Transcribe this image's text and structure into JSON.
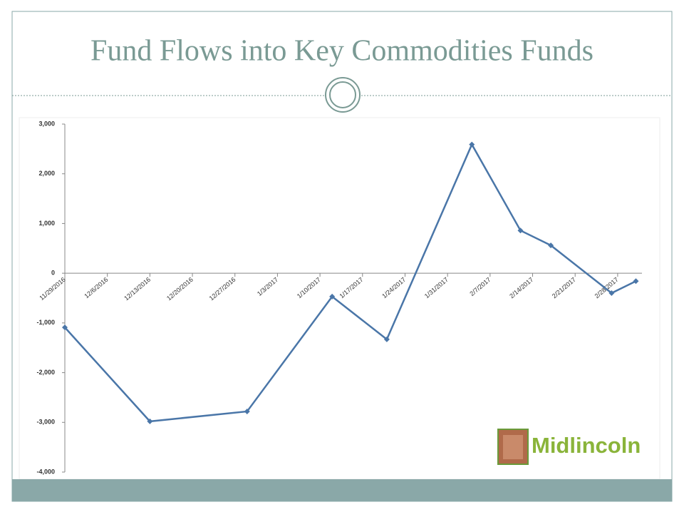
{
  "chart_data": {
    "type": "line",
    "title": "Fund Flows into Key Commodities Funds",
    "x": [
      "11/29/2016",
      "12/13/2016",
      "12/29/2016",
      "1/12/2017",
      "1/21/2017",
      "2/4/2017",
      "2/12/2017",
      "2/17/2017",
      "2/27/2017",
      "3/3/2017"
    ],
    "values": [
      -1090,
      -2980,
      -2780,
      -470,
      -1330,
      2590,
      860,
      560,
      -400,
      -160
    ],
    "color": "#4a76a8",
    "xlim": [
      "11/29/2016",
      "3/4/2017"
    ],
    "xticks": [
      "11/29/2016",
      "12/6/2016",
      "12/13/2016",
      "12/20/2016",
      "12/27/2016",
      "1/3/2017",
      "1/10/2017",
      "1/17/2017",
      "1/24/2017",
      "1/31/2017",
      "2/7/2017",
      "2/14/2017",
      "2/21/2017",
      "2/28/2017"
    ],
    "ylim": [
      -4000,
      3000
    ],
    "yticks": [
      {
        "value": -4000,
        "label": "-4,000"
      },
      {
        "value": -3000,
        "label": "-3,000"
      },
      {
        "value": -2000,
        "label": "-2,000"
      },
      {
        "value": -1000,
        "label": "-1,000"
      },
      0,
      {
        "value": 1000,
        "label": "1,000"
      },
      {
        "value": 2000,
        "label": "2,000"
      },
      {
        "value": 3000,
        "label": "3,000"
      }
    ]
  },
  "logo": "Midlincoln"
}
